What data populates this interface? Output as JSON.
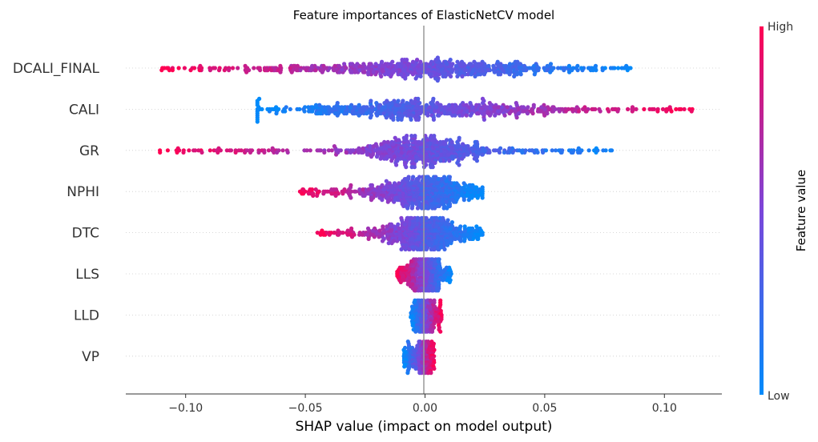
{
  "chart_data": {
    "type": "scatter",
    "subtype": "beeswarm",
    "title": "Feature importances of ElasticNetCV model",
    "xlabel": "SHAP value (impact on model output)",
    "xlim": [
      -0.125,
      0.124
    ],
    "xticks": [
      -0.1,
      -0.05,
      0.0,
      0.05,
      0.1
    ],
    "xtick_labels": [
      "−0.10",
      "−0.05",
      "0.00",
      "0.05",
      "0.10"
    ],
    "features": [
      {
        "name": "DCALI_FINAL",
        "min": -0.11,
        "max": 0.086,
        "spread": 0.11,
        "high_side": "negative"
      },
      {
        "name": "CALI",
        "min": -0.07,
        "max": 0.112,
        "spread": 0.11,
        "high_side": "positive"
      },
      {
        "name": "GR",
        "min": -0.113,
        "max": 0.084,
        "spread": 0.05,
        "high_side": "negative"
      },
      {
        "name": "NPHI",
        "min": -0.053,
        "max": 0.024,
        "spread": 0.04,
        "high_side": "negative"
      },
      {
        "name": "DTC",
        "min": -0.045,
        "max": 0.024,
        "spread": 0.03,
        "high_side": "negative"
      },
      {
        "name": "LLS",
        "min": -0.012,
        "max": 0.011,
        "spread": 0.01,
        "high_side": "negative"
      },
      {
        "name": "LLD",
        "min": -0.006,
        "max": 0.007,
        "spread": 0.005,
        "high_side": "positive"
      },
      {
        "name": "VP",
        "min": -0.009,
        "max": 0.004,
        "spread": 0.004,
        "high_side": "positive"
      }
    ],
    "colorbar": {
      "label": "Feature value",
      "high_label": "High",
      "low_label": "Low",
      "high_color": "#ff0052",
      "low_color": "#008bfb"
    },
    "zero_line": true,
    "grid": false
  }
}
